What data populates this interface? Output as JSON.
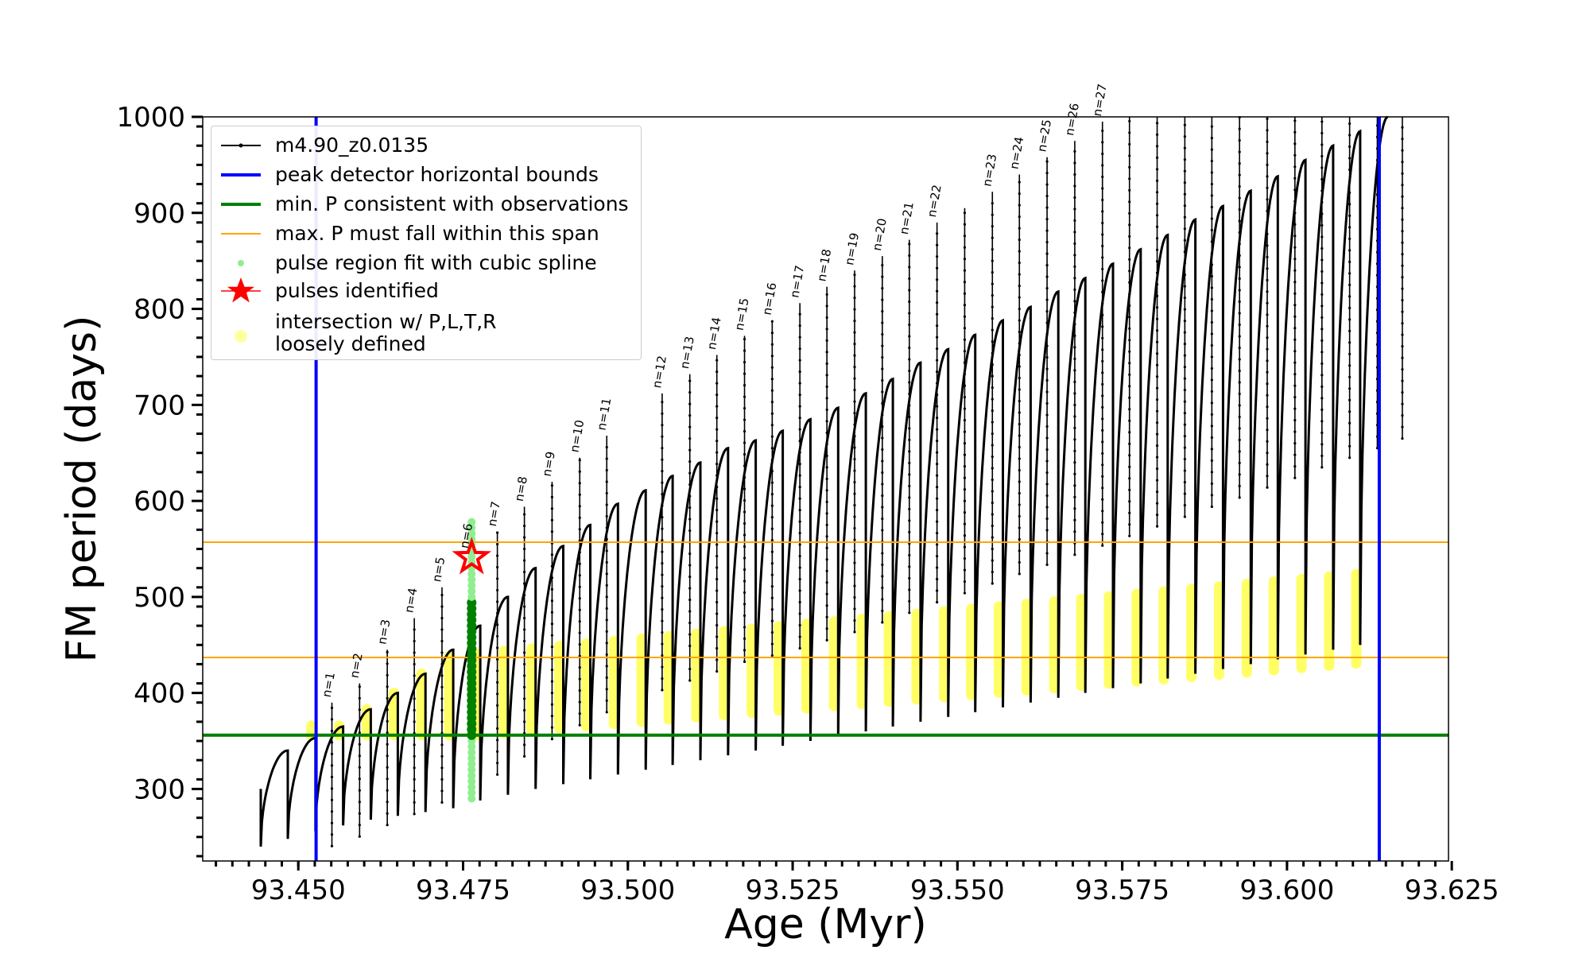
{
  "chart_data": {
    "type": "line",
    "xlabel": "Age (Myr)",
    "ylabel": "FM period (days)",
    "xlim": [
      93.4355,
      93.6245
    ],
    "ylim": [
      225,
      1000
    ],
    "xticks": [
      93.45,
      93.475,
      93.5,
      93.525,
      93.55,
      93.575,
      93.6,
      93.625
    ],
    "xtick_labels": [
      "93.450",
      "93.475",
      "93.500",
      "93.525",
      "93.550",
      "93.575",
      "93.600",
      "93.625"
    ],
    "yticks": [
      300,
      400,
      500,
      600,
      700,
      800,
      900,
      1000
    ],
    "ytick_labels": [
      "300",
      "400",
      "500",
      "600",
      "700",
      "800",
      "900",
      "1000"
    ],
    "grid": false,
    "legend_position": "upper-left",
    "series": [
      {
        "name": "m4.90_z0.0135",
        "color": "#000000",
        "kind": "pulse-track",
        "start": {
          "x": 93.4443,
          "y": 300
        },
        "pulses": [
          {
            "x": 93.4484,
            "low": 240,
            "top": 340
          },
          {
            "x": 93.4526,
            "low": 248,
            "top": 353
          },
          {
            "x": 93.4568,
            "low": 256,
            "top": 365
          },
          {
            "x": 93.461,
            "low": 262,
            "top": 383
          },
          {
            "x": 93.4651,
            "low": 268,
            "top": 400
          },
          {
            "x": 93.4693,
            "low": 272,
            "top": 420
          },
          {
            "x": 93.4735,
            "low": 276,
            "top": 445
          },
          {
            "x": 93.4776,
            "low": 280,
            "top": 470
          },
          {
            "x": 93.4818,
            "low": 288,
            "top": 500
          },
          {
            "x": 93.486,
            "low": 294,
            "top": 530
          },
          {
            "x": 93.4902,
            "low": 300,
            "top": 553
          },
          {
            "x": 93.4943,
            "low": 305,
            "top": 575
          },
          {
            "x": 93.4985,
            "low": 310,
            "top": 597
          },
          {
            "x": 93.5027,
            "low": 315,
            "top": 611
          },
          {
            "x": 93.5068,
            "low": 320,
            "top": 626
          },
          {
            "x": 93.511,
            "low": 325,
            "top": 640
          },
          {
            "x": 93.5152,
            "low": 330,
            "top": 655
          },
          {
            "x": 93.5194,
            "low": 335,
            "top": 663
          },
          {
            "x": 93.5235,
            "low": 340,
            "top": 673
          },
          {
            "x": 93.5277,
            "low": 345,
            "top": 685
          },
          {
            "x": 93.5319,
            "low": 350,
            "top": 697
          },
          {
            "x": 93.5361,
            "low": 355,
            "top": 712
          },
          {
            "x": 93.5402,
            "low": 360,
            "top": 727
          },
          {
            "x": 93.5444,
            "low": 365,
            "top": 744
          },
          {
            "x": 93.5486,
            "low": 370,
            "top": 758
          },
          {
            "x": 93.5527,
            "low": 375,
            "top": 773
          },
          {
            "x": 93.5569,
            "low": 380,
            "top": 788
          },
          {
            "x": 93.5611,
            "low": 385,
            "top": 802
          },
          {
            "x": 93.5653,
            "low": 390,
            "top": 818
          },
          {
            "x": 93.5694,
            "low": 395,
            "top": 832
          },
          {
            "x": 93.5736,
            "low": 400,
            "top": 847
          },
          {
            "x": 93.5778,
            "low": 405,
            "top": 862
          },
          {
            "x": 93.5819,
            "low": 410,
            "top": 877
          },
          {
            "x": 93.5861,
            "low": 415,
            "top": 893
          },
          {
            "x": 93.5903,
            "low": 420,
            "top": 907
          },
          {
            "x": 93.5945,
            "low": 425,
            "top": 923
          },
          {
            "x": 93.5986,
            "low": 430,
            "top": 938
          },
          {
            "x": 93.6028,
            "low": 435,
            "top": 955
          },
          {
            "x": 93.607,
            "low": 440,
            "top": 970
          },
          {
            "x": 93.6111,
            "low": 445,
            "top": 985
          },
          {
            "x": 93.6153,
            "low": 450,
            "top": 1000
          }
        ],
        "spikes": [
          {
            "x": 93.4551,
            "top": 390
          },
          {
            "x": 93.4593,
            "top": 410
          },
          {
            "x": 93.4635,
            "top": 445
          },
          {
            "x": 93.4676,
            "top": 478
          },
          {
            "x": 93.4718,
            "top": 510
          },
          {
            "x": 93.476,
            "top": 545
          },
          {
            "x": 93.4802,
            "top": 568
          },
          {
            "x": 93.4843,
            "top": 594
          },
          {
            "x": 93.4885,
            "top": 620
          },
          {
            "x": 93.4927,
            "top": 645
          },
          {
            "x": 93.4968,
            "top": 668
          },
          {
            "x": 93.5052,
            "top": 712
          },
          {
            "x": 93.5094,
            "top": 732
          },
          {
            "x": 93.5135,
            "top": 752
          },
          {
            "x": 93.5177,
            "top": 772
          },
          {
            "x": 93.5219,
            "top": 788
          },
          {
            "x": 93.5261,
            "top": 806
          },
          {
            "x": 93.5302,
            "top": 823
          },
          {
            "x": 93.5344,
            "top": 840
          },
          {
            "x": 93.5386,
            "top": 855
          },
          {
            "x": 93.5427,
            "top": 872
          },
          {
            "x": 93.5469,
            "top": 890
          },
          {
            "x": 93.5511,
            "top": 905
          },
          {
            "x": 93.5553,
            "top": 922
          },
          {
            "x": 93.5594,
            "top": 940
          },
          {
            "x": 93.5636,
            "top": 958
          },
          {
            "x": 93.5678,
            "top": 975
          },
          {
            "x": 93.572,
            "top": 995
          },
          {
            "x": 93.5761,
            "top": 1000
          },
          {
            "x": 93.5803,
            "top": 1000
          },
          {
            "x": 93.5845,
            "top": 1000
          },
          {
            "x": 93.5886,
            "top": 1000
          },
          {
            "x": 93.5928,
            "top": 1000
          },
          {
            "x": 93.597,
            "top": 1000
          },
          {
            "x": 93.6012,
            "top": 1000
          },
          {
            "x": 93.6053,
            "top": 1000
          },
          {
            "x": 93.6095,
            "top": 1000
          },
          {
            "x": 93.6137,
            "top": 1000
          },
          {
            "x": 93.6175,
            "top": 1000
          }
        ]
      },
      {
        "name": "peak detector horizontal bounds",
        "color": "#0000ff",
        "kind": "vlines",
        "x": [
          93.4527,
          93.614
        ]
      },
      {
        "name": "min. P consistent with observations",
        "color": "#008000",
        "kind": "hline",
        "y": 356
      },
      {
        "name": "max. P must fall within this span",
        "color": "#ffa500",
        "kind": "hlines",
        "y": [
          437,
          557
        ]
      },
      {
        "name": "pulse region fit with cubic spline",
        "color": "#90ee90",
        "kind": "vband",
        "x": 93.4763,
        "y": [
          290,
          580
        ]
      },
      {
        "name": "pulses identified",
        "color": "#ff0000",
        "kind": "marker",
        "x": 93.4763,
        "y": 541
      },
      {
        "name": "intersection w/ P,L,T,R\nloosely defined",
        "color": "#ffff00",
        "kind": "overlay"
      }
    ],
    "annotations": [
      {
        "text": "n=1",
        "x": 93.4551,
        "y": 390
      },
      {
        "text": "n=2",
        "x": 93.4593,
        "y": 410
      },
      {
        "text": "n=3",
        "x": 93.4635,
        "y": 445
      },
      {
        "text": "n=4",
        "x": 93.4676,
        "y": 478
      },
      {
        "text": "n=5",
        "x": 93.4718,
        "y": 510
      },
      {
        "text": "n=6",
        "x": 93.476,
        "y": 545
      },
      {
        "text": "n=7",
        "x": 93.4802,
        "y": 568
      },
      {
        "text": "n=8",
        "x": 93.4843,
        "y": 594
      },
      {
        "text": "n=9",
        "x": 93.4885,
        "y": 620
      },
      {
        "text": "n=10",
        "x": 93.4927,
        "y": 645
      },
      {
        "text": "n=11",
        "x": 93.4968,
        "y": 668
      },
      {
        "text": "n=12",
        "x": 93.5052,
        "y": 712
      },
      {
        "text": "n=13",
        "x": 93.5094,
        "y": 732
      },
      {
        "text": "n=14",
        "x": 93.5135,
        "y": 752
      },
      {
        "text": "n=15",
        "x": 93.5177,
        "y": 772
      },
      {
        "text": "n=16",
        "x": 93.5219,
        "y": 788
      },
      {
        "text": "n=17",
        "x": 93.5261,
        "y": 806
      },
      {
        "text": "n=18",
        "x": 93.5302,
        "y": 823
      },
      {
        "text": "n=19",
        "x": 93.5344,
        "y": 840
      },
      {
        "text": "n=20",
        "x": 93.5386,
        "y": 855
      },
      {
        "text": "n=21",
        "x": 93.5427,
        "y": 872
      },
      {
        "text": "n=22",
        "x": 93.5469,
        "y": 890
      },
      {
        "text": "n=23",
        "x": 93.5553,
        "y": 922
      },
      {
        "text": "n=24",
        "x": 93.5594,
        "y": 940
      },
      {
        "text": "n=25",
        "x": 93.5636,
        "y": 958
      },
      {
        "text": "n=26",
        "x": 93.5678,
        "y": 975
      },
      {
        "text": "n=27",
        "x": 93.572,
        "y": 995
      }
    ]
  }
}
